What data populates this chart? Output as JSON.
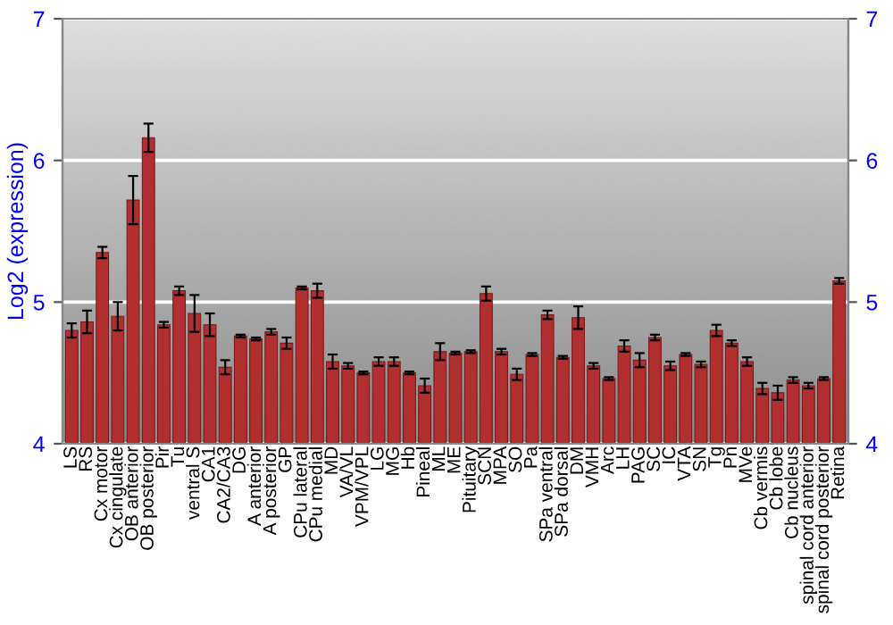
{
  "chart_data": {
    "type": "bar",
    "ylabel": "Log2 (expression)",
    "categories": [
      "LS",
      "RS",
      "Cx motor",
      "Cx cingulate",
      "OB anterior",
      "OB posterior",
      "Pir",
      "Tu",
      "ventral S",
      "CA1",
      "CA2/CA3",
      "DG",
      "A anterior",
      "A posterior",
      "GP",
      "CPu lateral",
      "CPu medial",
      "MD",
      "VA/VL",
      "VPM/VPL",
      "LG",
      "MG",
      "Hb",
      "Pineal",
      "ML",
      "ME",
      "Pituitary",
      "SCN",
      "MPA",
      "SO",
      "Pa",
      "SPa ventral",
      "SPa dorsal",
      "DM",
      "VMH",
      "Arc",
      "LH",
      "PAG",
      "SC",
      "IC",
      "VTA",
      "SN",
      "Tg",
      "Pn",
      "MVe",
      "Cb vermis",
      "Cb lobe",
      "Cb nucleus",
      "spinal cord anterior",
      "spinal cord posterior",
      "Retina"
    ],
    "series": [
      {
        "color": "#b22f2f",
        "values": [
          4.8,
          4.86,
          5.35,
          4.9,
          5.72,
          6.16,
          4.84,
          5.08,
          4.92,
          4.84,
          4.54,
          4.76,
          4.74,
          4.79,
          4.71,
          5.1,
          5.08,
          4.58,
          4.55,
          4.5,
          4.58,
          4.58,
          4.5,
          4.41,
          4.65,
          4.64,
          4.65,
          5.06,
          4.65,
          4.49,
          4.63,
          4.91,
          4.61,
          4.89,
          4.55,
          4.46,
          4.69,
          4.59,
          4.75,
          4.55,
          4.63,
          4.56,
          4.8,
          4.71,
          4.58,
          4.39,
          4.36,
          4.45,
          4.41,
          4.46,
          5.15
        ],
        "errors": [
          0.05,
          0.08,
          0.04,
          0.1,
          0.17,
          0.1,
          0.02,
          0.03,
          0.13,
          0.08,
          0.05,
          0.01,
          0.01,
          0.02,
          0.04,
          0.01,
          0.05,
          0.05,
          0.02,
          0.01,
          0.03,
          0.03,
          0.01,
          0.05,
          0.06,
          0.01,
          0.01,
          0.05,
          0.02,
          0.04,
          0.01,
          0.03,
          0.01,
          0.08,
          0.02,
          0.01,
          0.04,
          0.05,
          0.02,
          0.03,
          0.01,
          0.02,
          0.04,
          0.02,
          0.03,
          0.04,
          0.05,
          0.02,
          0.02,
          0.01,
          0.02
        ]
      }
    ],
    "ylim": [
      4,
      7
    ],
    "yticks": [
      4,
      5,
      6,
      7
    ],
    "y2lim": [
      4,
      7
    ],
    "y2ticks": [
      4,
      5,
      6,
      7
    ],
    "grid": "y"
  }
}
